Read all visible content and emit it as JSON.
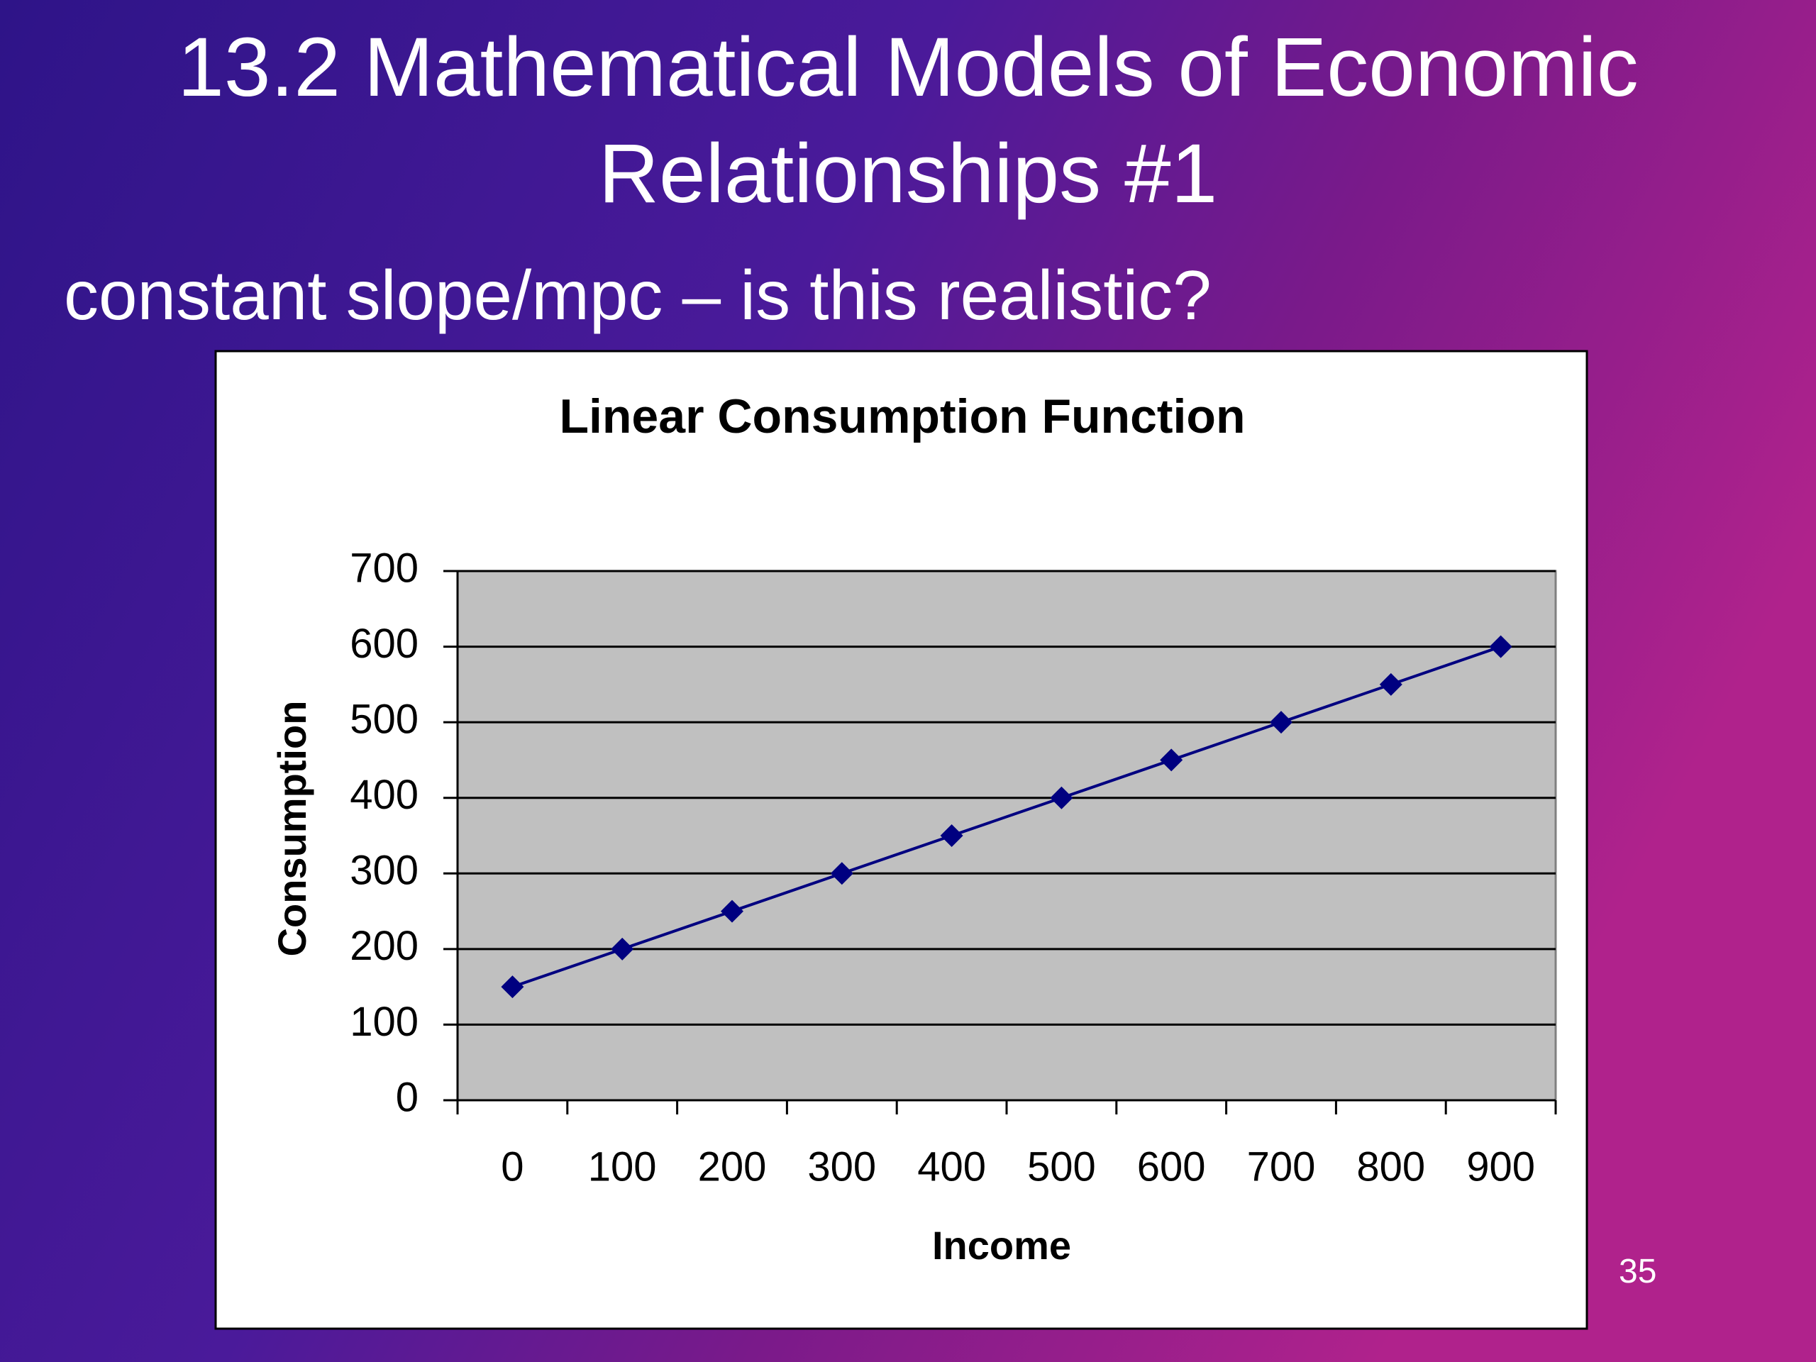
{
  "slide": {
    "title": "13.2 Mathematical Models of Economic Relationships #1",
    "subtitle": "constant slope/mpc – is this realistic?",
    "page_number": "35"
  },
  "chart_data": {
    "type": "line",
    "title": "Linear Consumption Function",
    "x_label": "Income",
    "y_label": "Consumption",
    "categories": [
      "0",
      "100",
      "200",
      "300",
      "400",
      "500",
      "600",
      "700",
      "800",
      "900"
    ],
    "series": [
      {
        "name": "Consumption",
        "color": "#000080",
        "values": [
          150,
          200,
          250,
          300,
          350,
          400,
          450,
          500,
          550,
          600
        ]
      }
    ],
    "ylim": [
      0,
      700
    ],
    "yticks": [
      0,
      100,
      200,
      300,
      400,
      500,
      600,
      700
    ],
    "grid": true,
    "plot_background": "#c0c0c0"
  }
}
